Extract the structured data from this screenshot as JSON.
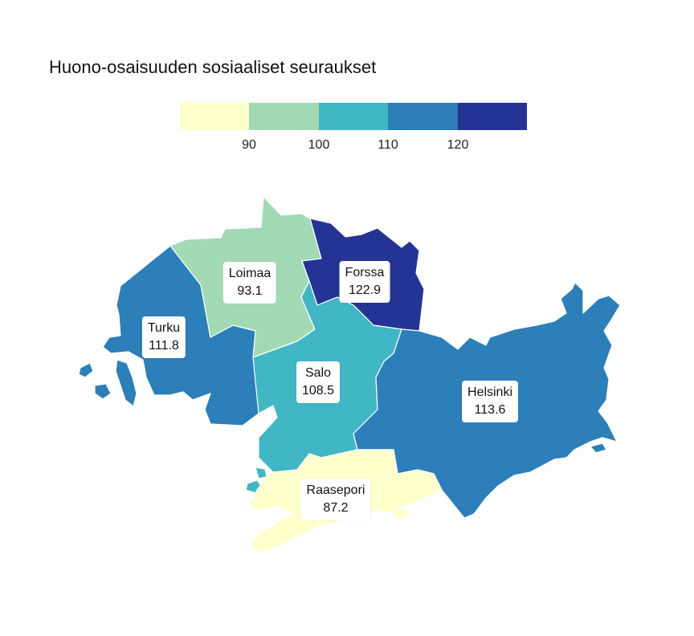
{
  "title": "Huono-osaisuuden sosiaaliset seuraukset",
  "legend": {
    "colors": [
      "#ffffcc",
      "#a1dab4",
      "#41b6c4",
      "#2c7fb8",
      "#253494"
    ],
    "ticks": [
      "90",
      "100",
      "110",
      "120"
    ]
  },
  "regions": [
    {
      "name": "Loimaa",
      "value": "93.1",
      "color": "#a1dab4"
    },
    {
      "name": "Forssa",
      "value": "122.9",
      "color": "#253494"
    },
    {
      "name": "Turku",
      "value": "111.8",
      "color": "#2c7fb8"
    },
    {
      "name": "Salo",
      "value": "108.5",
      "color": "#41b6c4"
    },
    {
      "name": "Helsinki",
      "value": "113.6",
      "color": "#2c7fb8"
    },
    {
      "name": "Raasepori",
      "value": "87.2",
      "color": "#ffffcc"
    }
  ]
}
